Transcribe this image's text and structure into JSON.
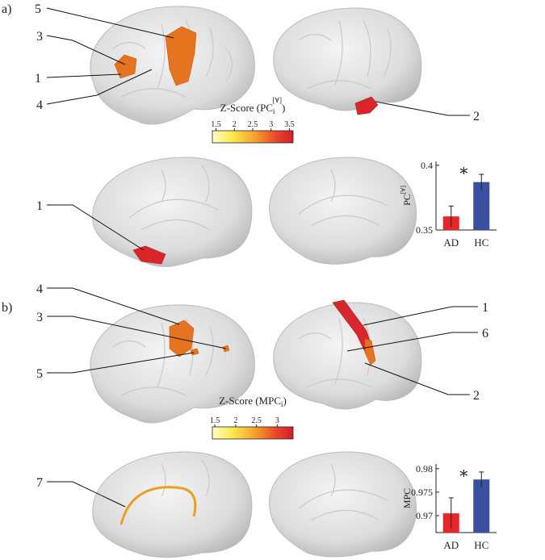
{
  "panels": [
    {
      "label": "a)",
      "regions": [
        "5",
        "3",
        "1",
        "4",
        "2",
        "1"
      ],
      "colorbar": {
        "title": {
          "prefix": "Z-Score (PC",
          "sub": "i",
          "sup": "[∀]",
          "suffix": ")"
        },
        "clim": [
          1.4,
          3.6
        ],
        "ticks": [
          1.5,
          2,
          2.5,
          3,
          3.5
        ]
      }
    },
    {
      "label": "b)",
      "regions": [
        "4",
        "3",
        "5",
        "1",
        "6",
        "2",
        "7"
      ],
      "colorbar": {
        "title": {
          "prefix": "Z-Score (MPC",
          "sub": "i",
          "suffix": ")"
        },
        "clim": [
          1.44,
          3.38
        ],
        "ticks": [
          1.5,
          2,
          2.5,
          3
        ]
      }
    }
  ],
  "chart_data": [
    {
      "type": "bar",
      "ylabel": {
        "text": "PC",
        "sup": "[∀]"
      },
      "categories": [
        "AD",
        "HC"
      ],
      "values": [
        0.3605,
        0.387
      ],
      "errors": [
        0.008,
        0.006
      ],
      "colors": [
        "#e8262a",
        "#3a4fa0"
      ],
      "ylim": [
        0.35,
        0.403
      ],
      "yticks": [
        0.35,
        0.4
      ],
      "annotation": "∗"
    },
    {
      "type": "bar",
      "ylabel": {
        "text": "MPC"
      },
      "categories": [
        "AD",
        "HC"
      ],
      "values": [
        0.9705,
        0.9777
      ],
      "errors": [
        0.0033,
        0.0016
      ],
      "colors": [
        "#e8262a",
        "#3a4fa0"
      ],
      "ylim": [
        0.9664,
        0.981
      ],
      "yticks": [
        0.97,
        0.975,
        0.98
      ],
      "annotation": "∗"
    }
  ]
}
